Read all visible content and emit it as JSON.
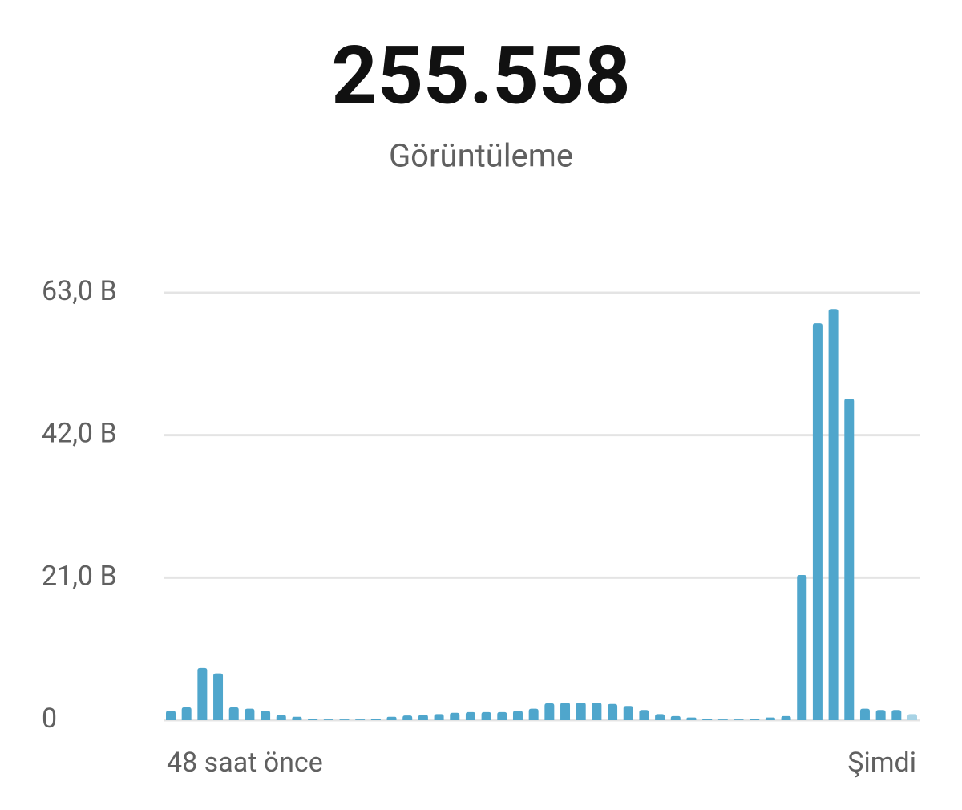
{
  "chart_data": {
    "type": "bar",
    "title": "255.558",
    "subtitle": "Görüntüleme",
    "categories": [
      "48 saat önce",
      null,
      null,
      null,
      null,
      null,
      null,
      null,
      null,
      null,
      null,
      null,
      null,
      null,
      null,
      null,
      null,
      null,
      null,
      null,
      null,
      null,
      null,
      null,
      null,
      null,
      null,
      null,
      null,
      null,
      null,
      null,
      null,
      null,
      null,
      null,
      null,
      null,
      null,
      null,
      null,
      null,
      null,
      null,
      null,
      null,
      null,
      "Şimdi"
    ],
    "values": [
      1.4,
      1.9,
      7.7,
      6.9,
      1.9,
      1.7,
      1.4,
      0.8,
      0.5,
      0.2,
      0.1,
      0.1,
      0.1,
      0.2,
      0.5,
      0.7,
      0.8,
      0.9,
      1.1,
      1.2,
      1.2,
      1.2,
      1.4,
      1.7,
      2.5,
      2.6,
      2.6,
      2.6,
      2.4,
      2.1,
      1.5,
      0.9,
      0.6,
      0.4,
      0.2,
      0.1,
      0.1,
      0.2,
      0.4,
      0.6,
      21.4,
      58.5,
      60.6,
      47.4,
      1.7,
      1.5,
      1.5,
      0.9
    ],
    "color": "#4fa6cc",
    "last_bar_color": "#a8d3e5",
    "ylim": [
      0,
      63
    ],
    "yticks": [
      0,
      {
        "value": 21,
        "label": "21,0 B"
      },
      {
        "value": 42,
        "label": "42,0 B"
      },
      {
        "value": 63,
        "label": "63,0 B"
      }
    ],
    "grid": true
  }
}
